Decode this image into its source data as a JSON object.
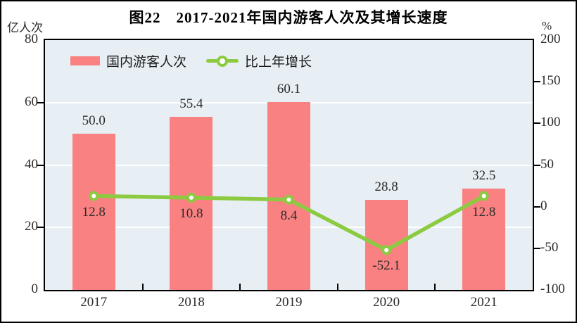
{
  "chart_data": {
    "type": "bar+line",
    "title": "图22　2017-2021年国内游客人次及其增长速度",
    "categories": [
      "2017",
      "2018",
      "2019",
      "2020",
      "2021"
    ],
    "series": [
      {
        "name": "国内游客人次",
        "type": "bar",
        "axis": "left",
        "color": "#F98181",
        "values": [
          50.0,
          55.4,
          60.1,
          28.8,
          32.5
        ],
        "labels": [
          "50.0",
          "55.4",
          "60.1",
          "28.8",
          "32.5"
        ]
      },
      {
        "name": "比上年增长",
        "type": "line",
        "axis": "right",
        "color": "#8CCB41",
        "marker": "circle-white-fill",
        "values": [
          12.8,
          10.8,
          8.4,
          -52.1,
          12.8
        ],
        "labels": [
          "12.8",
          "10.8",
          "8.4",
          "-52.1",
          "12.8"
        ]
      }
    ],
    "axis_left": {
      "label": "亿人次",
      "min": 0,
      "max": 80,
      "ticks": [
        80,
        60,
        40,
        20,
        0
      ],
      "tick_marks": [
        60,
        40,
        20
      ],
      "gridlines": [
        60,
        40,
        20
      ]
    },
    "axis_right": {
      "label": "%",
      "min": -100,
      "max": 200,
      "ticks": [
        200,
        150,
        100,
        50,
        0,
        -50,
        -100
      ],
      "tick_marks": [
        150,
        100,
        50,
        0,
        -50
      ]
    },
    "plot_bg": "#E7EFF4",
    "grid_color": "#FFFFFF",
    "frame_border": "#000000",
    "legend_position": "top-left-inside",
    "grid": true
  }
}
